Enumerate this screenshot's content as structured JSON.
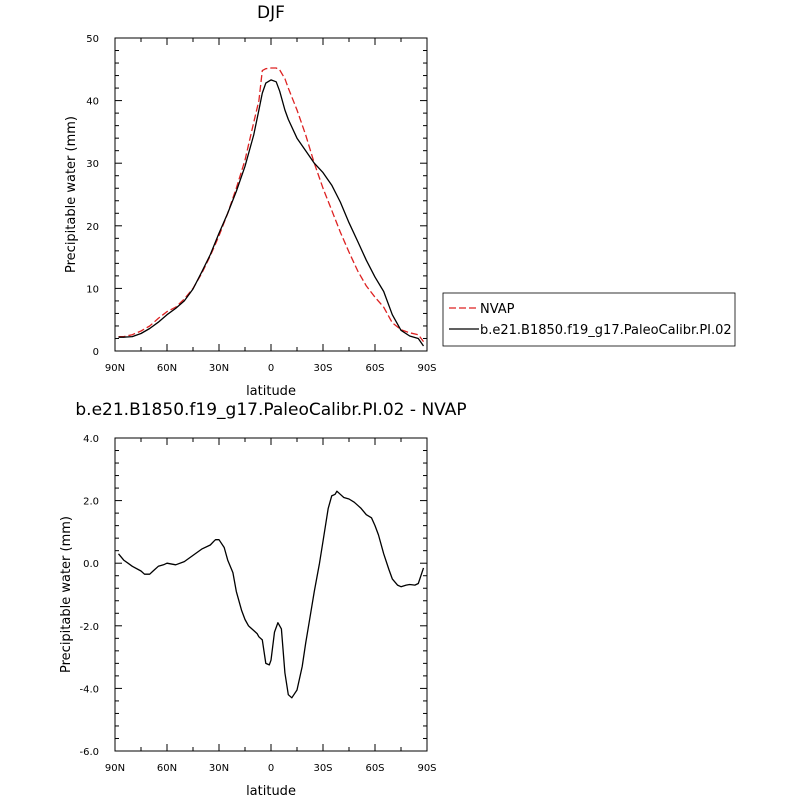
{
  "chart_data": [
    {
      "type": "line",
      "title": "DJF",
      "xlabel": "latitude",
      "ylabel": "Precipitable water (mm)",
      "xlim": [
        90,
        -90
      ],
      "ylim": [
        0,
        50
      ],
      "x_ticks": [
        90,
        60,
        30,
        0,
        -30,
        -60,
        -90
      ],
      "x_tick_labels": [
        "90N",
        "60N",
        "30N",
        "0",
        "30S",
        "60S",
        "90S"
      ],
      "y_ticks": [
        0,
        10,
        20,
        30,
        40,
        50
      ],
      "y_tick_labels": [
        "0",
        "10",
        "20",
        "30",
        "40",
        "50"
      ],
      "legend": {
        "placement": "right",
        "entries": [
          {
            "label": "NVAP",
            "color": "#dd2222",
            "dash": true
          },
          {
            "label": "b.e21.B1850.f19_g17.PaleoCalibr.PI.02",
            "color": "#000000",
            "dash": false
          }
        ]
      },
      "series": [
        {
          "name": "NVAP",
          "color": "#dd2222",
          "dash": true,
          "x": [
            88,
            85,
            80,
            75,
            70,
            65,
            60,
            55,
            50,
            45,
            40,
            35,
            30,
            25,
            20,
            15,
            10,
            7,
            5,
            3,
            0,
            -3,
            -5,
            -8,
            -10,
            -15,
            -20,
            -25,
            -30,
            -35,
            -40,
            -45,
            -50,
            -55,
            -60,
            -65,
            -70,
            -75,
            -80,
            -85,
            -88
          ],
          "y": [
            2.3,
            2.3,
            2.6,
            3.2,
            4.0,
            5.2,
            6.3,
            7.0,
            8.3,
            10.0,
            12.4,
            15.2,
            18.4,
            22.0,
            26.0,
            30.5,
            36.5,
            40.0,
            44.8,
            45.1,
            45.2,
            45.2,
            44.9,
            43.5,
            42.0,
            38.5,
            34.5,
            30.0,
            26.0,
            22.5,
            19.0,
            15.8,
            12.8,
            10.4,
            8.6,
            7.0,
            4.5,
            3.4,
            2.9,
            2.6,
            1.5
          ]
        },
        {
          "name": "b.e21.B1850.f19_g17.PaleoCalibr.PI.02",
          "color": "#000000",
          "dash": false,
          "x": [
            88,
            85,
            80,
            75,
            70,
            65,
            60,
            55,
            50,
            45,
            40,
            35,
            30,
            25,
            20,
            15,
            10,
            7,
            5,
            3,
            0,
            -3,
            -5,
            -8,
            -10,
            -15,
            -20,
            -25,
            -30,
            -35,
            -40,
            -45,
            -50,
            -55,
            -60,
            -65,
            -70,
            -75,
            -80,
            -85,
            -88
          ],
          "y": [
            2.2,
            2.2,
            2.3,
            2.8,
            3.6,
            4.6,
            5.8,
            6.8,
            8.0,
            9.9,
            12.6,
            15.4,
            18.8,
            22.0,
            25.5,
            29.5,
            34.5,
            38.5,
            41.2,
            42.8,
            43.3,
            43.0,
            41.5,
            38.5,
            37.0,
            34.0,
            32.0,
            30.0,
            28.5,
            26.5,
            23.8,
            20.5,
            17.5,
            14.5,
            11.8,
            9.5,
            5.8,
            3.3,
            2.4,
            2.0,
            0.8
          ]
        }
      ]
    },
    {
      "type": "line",
      "title": "b.e21.B1850.f19_g17.PaleoCalibr.PI.02 - NVAP",
      "xlabel": "latitude",
      "ylabel": "Precipitable water (mm)",
      "xlim": [
        90,
        -90
      ],
      "ylim": [
        -6,
        4
      ],
      "x_ticks": [
        90,
        60,
        30,
        0,
        -30,
        -60,
        -90
      ],
      "x_tick_labels": [
        "90N",
        "60N",
        "30N",
        "0",
        "30S",
        "60S",
        "90S"
      ],
      "y_ticks": [
        -6,
        -4,
        -2,
        0,
        2,
        4
      ],
      "y_tick_labels": [
        "-6.0",
        "-4.0",
        "-2.0",
        "0.0",
        "2.0",
        "4.0"
      ],
      "series": [
        {
          "color": "#000000",
          "dash": false,
          "x": [
            88,
            85,
            80,
            75,
            73,
            70,
            68,
            65,
            62,
            60,
            55,
            50,
            45,
            40,
            35,
            33,
            32,
            30,
            27,
            25,
            22,
            20,
            17,
            15,
            13,
            12,
            10,
            8,
            7,
            5,
            3,
            1,
            0,
            -2,
            -4,
            -6,
            -8,
            -10,
            -12,
            -15,
            -18,
            -20,
            -22,
            -25,
            -28,
            -30,
            -33,
            -35,
            -37,
            -38,
            -40,
            -42,
            -45,
            -48,
            -50,
            -52,
            -55,
            -58,
            -60,
            -62,
            -65,
            -68,
            -70,
            -73,
            -75,
            -78,
            -80,
            -83,
            -85,
            -88
          ],
          "y": [
            0.3,
            0.1,
            -0.1,
            -0.25,
            -0.35,
            -0.35,
            -0.25,
            -0.1,
            -0.05,
            0.0,
            -0.05,
            0.05,
            0.25,
            0.45,
            0.58,
            0.7,
            0.75,
            0.75,
            0.5,
            0.1,
            -0.3,
            -0.9,
            -1.5,
            -1.8,
            -2.0,
            -2.05,
            -2.15,
            -2.25,
            -2.35,
            -2.45,
            -3.2,
            -3.25,
            -3.1,
            -2.2,
            -1.9,
            -2.1,
            -3.5,
            -4.2,
            -4.3,
            -4.05,
            -3.3,
            -2.55,
            -1.9,
            -0.9,
            0.0,
            0.7,
            1.75,
            2.15,
            2.2,
            2.3,
            2.2,
            2.1,
            2.05,
            1.95,
            1.85,
            1.75,
            1.55,
            1.45,
            1.2,
            0.9,
            0.3,
            -0.2,
            -0.5,
            -0.7,
            -0.75,
            -0.7,
            -0.68,
            -0.7,
            -0.65,
            -0.15
          ]
        }
      ]
    }
  ]
}
